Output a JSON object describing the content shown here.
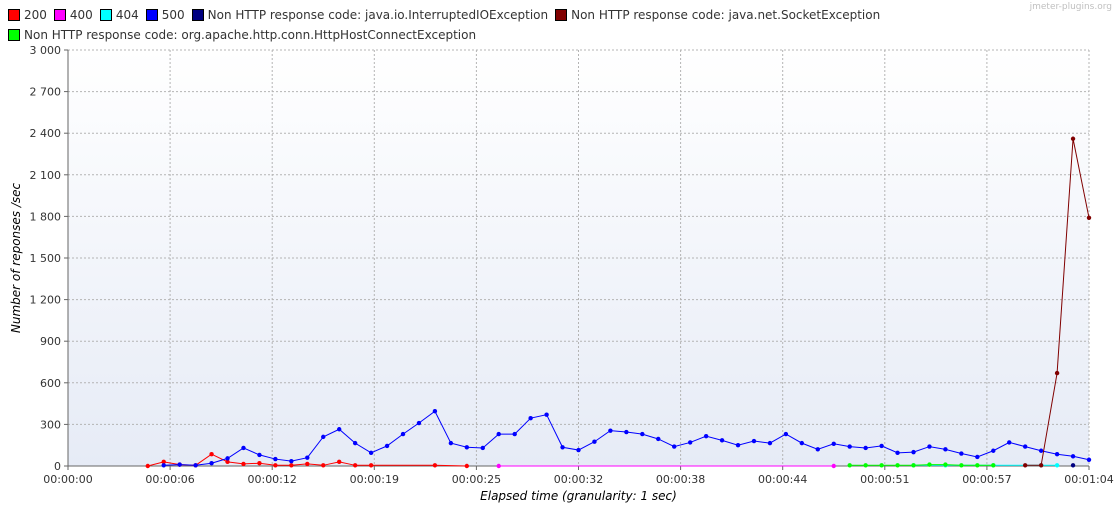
{
  "watermark": "jmeter-plugins.org",
  "chart_data": {
    "type": "line",
    "xlabel": "Elapsed time (granularity: 1 sec)",
    "ylabel": "Number of reponses /sec",
    "ylim": [
      0,
      3000
    ],
    "xlim": [
      0,
      64
    ],
    "grid": true,
    "legend": "top-left",
    "y_ticks": [
      0,
      300,
      600,
      900,
      1200,
      1500,
      1800,
      2100,
      2400,
      2700,
      3000
    ],
    "y_tick_labels": [
      "0",
      "300",
      "600",
      "900",
      "1 200",
      "1 500",
      "1 800",
      "2 100",
      "2 400",
      "2 700",
      "3 000"
    ],
    "x_ticks": [
      0,
      6.4,
      12.8,
      19.2,
      25.6,
      32,
      38.4,
      44.8,
      51.2,
      57.6,
      64
    ],
    "x_tick_labels": [
      "00:00:00",
      "00:00:06",
      "00:00:12",
      "00:00:19",
      "00:00:25",
      "00:00:32",
      "00:00:38",
      "00:00:44",
      "00:00:51",
      "00:00:57",
      "00:01:04"
    ],
    "series": [
      {
        "name": "200",
        "color": "#ff0000",
        "x": [
          5,
          6,
          7,
          8,
          9,
          10,
          11,
          12,
          13,
          14,
          15,
          16,
          17,
          18,
          19,
          23,
          25
        ],
        "y": [
          0,
          30,
          10,
          5,
          85,
          30,
          15,
          20,
          5,
          5,
          15,
          5,
          30,
          5,
          5,
          5,
          0
        ]
      },
      {
        "name": "400",
        "color": "#ff00ff",
        "x": [
          27,
          48
        ],
        "y": [
          0,
          0
        ]
      },
      {
        "name": "404",
        "color": "#00ffff",
        "x": [
          53,
          55,
          58,
          61,
          62
        ],
        "y": [
          5,
          5,
          5,
          5,
          5
        ]
      },
      {
        "name": "500",
        "color": "#0000ff",
        "x": [
          6,
          7,
          8,
          9,
          10,
          11,
          12,
          13,
          14,
          15,
          16,
          17,
          18,
          19,
          20,
          21,
          22,
          23,
          24,
          25,
          26,
          27,
          28,
          29,
          30,
          31,
          32,
          33,
          34,
          35,
          36,
          37,
          38,
          39,
          40,
          41,
          42,
          43,
          44,
          45,
          46,
          47,
          48,
          49,
          50,
          51,
          52,
          53,
          54,
          55,
          56,
          57,
          58,
          59,
          60,
          61,
          62,
          63,
          64
        ],
        "y": [
          5,
          10,
          5,
          20,
          55,
          130,
          80,
          50,
          35,
          60,
          210,
          265,
          165,
          95,
          145,
          230,
          310,
          395,
          165,
          135,
          130,
          230,
          230,
          345,
          370,
          135,
          115,
          175,
          255,
          245,
          230,
          195,
          140,
          170,
          215,
          185,
          150,
          180,
          165,
          230,
          165,
          120,
          160,
          140,
          130,
          145,
          95,
          100,
          140,
          120,
          90,
          65,
          110,
          170,
          140,
          110,
          85,
          70,
          45
        ]
      },
      {
        "name": "Non HTTP response code: java.io.InterruptedIOException",
        "color": "#000080",
        "x": [
          63
        ],
        "y": [
          5
        ]
      },
      {
        "name": "Non HTTP response code: java.net.SocketException",
        "color": "#800000",
        "x": [
          60,
          61,
          62,
          63,
          64
        ],
        "y": [
          5,
          5,
          670,
          2360,
          1790
        ]
      },
      {
        "name": "Non HTTP response code: org.apache.http.conn.HttpHostConnectException",
        "color": "#00ff00",
        "x": [
          49,
          50,
          51,
          52,
          53,
          54,
          55,
          56,
          57,
          58
        ],
        "y": [
          5,
          5,
          5,
          5,
          5,
          10,
          10,
          5,
          5,
          5
        ]
      }
    ]
  }
}
